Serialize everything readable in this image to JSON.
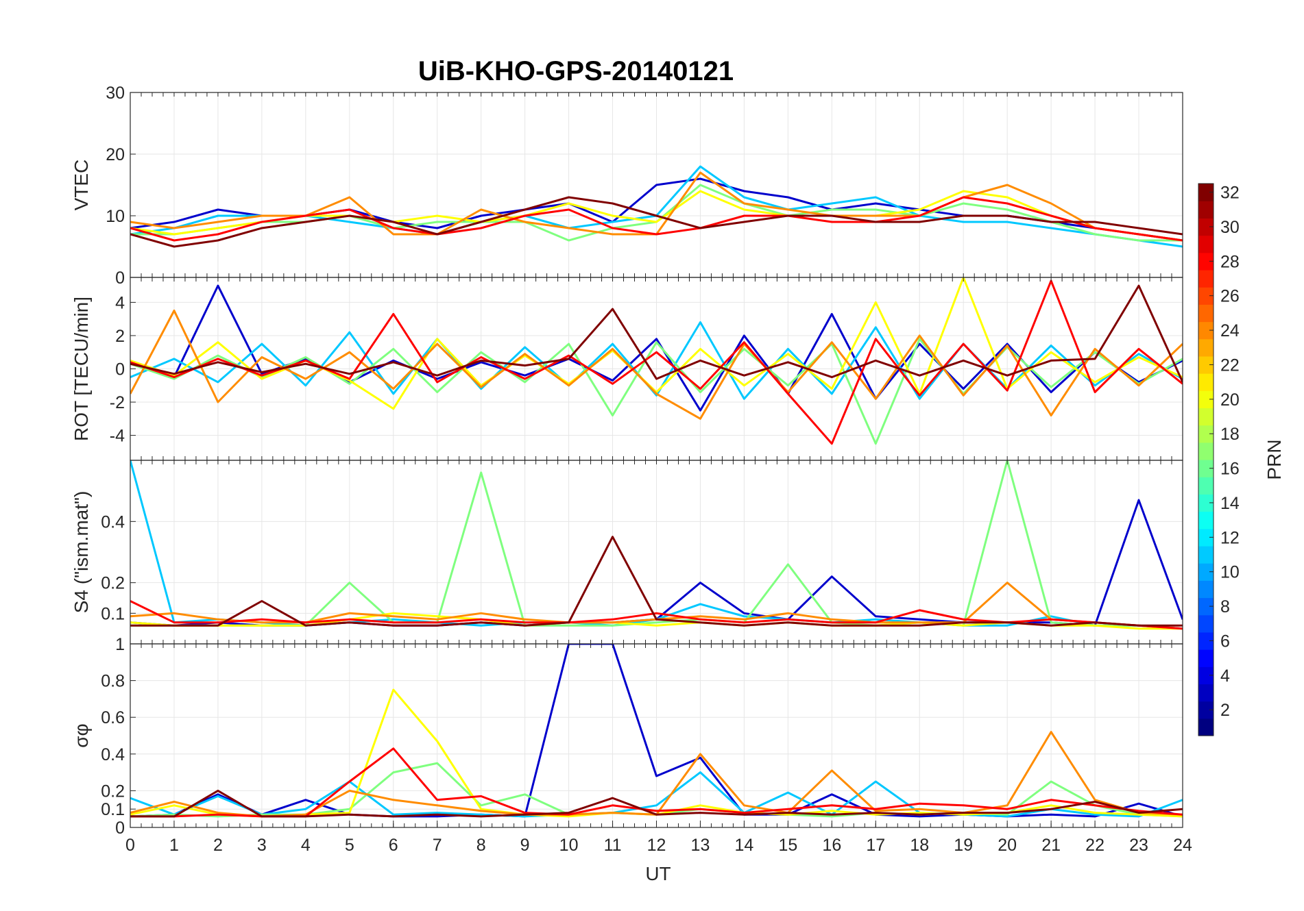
{
  "chart_data": {
    "type": "line",
    "title": "UiB-KHO-GPS-20140121",
    "xlabel": "UT",
    "xlim": [
      0,
      24
    ],
    "x_ticks": [
      "0",
      "1",
      "2",
      "3",
      "4",
      "5",
      "6",
      "7",
      "8",
      "9",
      "10",
      "11",
      "12",
      "13",
      "14",
      "15",
      "16",
      "17",
      "18",
      "19",
      "20",
      "21",
      "22",
      "23",
      "24"
    ],
    "grid": true,
    "colorbar": {
      "label": "PRN",
      "colormap": "jet",
      "range": [
        1,
        32
      ],
      "ticks": [
        "2",
        "4",
        "6",
        "8",
        "10",
        "12",
        "14",
        "16",
        "18",
        "20",
        "22",
        "24",
        "26",
        "28",
        "30",
        "32"
      ],
      "placement": "right"
    },
    "x": [
      0,
      1,
      2,
      3,
      4,
      5,
      6,
      7,
      8,
      9,
      10,
      11,
      12,
      13,
      14,
      15,
      16,
      17,
      18,
      19,
      20,
      21,
      22,
      23,
      24
    ],
    "panels": [
      {
        "ylabel": "VTEC",
        "ylim": [
          0,
          30
        ],
        "y_ticks": [
          "0",
          "10",
          "20",
          "30"
        ],
        "series": [
          {
            "color": "#0000cc",
            "values": [
              8,
              9,
              11,
              10,
              10,
              11,
              9,
              8,
              10,
              11,
              12,
              9,
              15,
              16,
              14,
              13,
              11,
              12,
              11,
              10,
              10,
              9,
              8,
              7,
              6
            ]
          },
          {
            "color": "#00c8ff",
            "values": [
              7,
              8,
              10,
              10,
              10,
              9,
              8,
              7,
              9,
              10,
              8,
              9,
              10,
              18,
              13,
              11,
              12,
              13,
              10,
              9,
              9,
              8,
              7,
              6,
              5
            ]
          },
          {
            "color": "#7fff7f",
            "values": [
              7,
              7,
              8,
              9,
              9,
              10,
              8,
              9,
              9,
              9,
              6,
              8,
              9,
              15,
              12,
              10,
              11,
              11,
              10,
              12,
              11,
              9,
              7,
              6,
              6
            ]
          },
          {
            "color": "#ffff00",
            "values": [
              8,
              7,
              8,
              9,
              10,
              10,
              9,
              10,
              9,
              10,
              12,
              10,
              9,
              14,
              11,
              10,
              10,
              10,
              11,
              14,
              13,
              10,
              8,
              7,
              6
            ]
          },
          {
            "color": "#ff8c00",
            "values": [
              9,
              8,
              9,
              10,
              10,
              13,
              7,
              7,
              11,
              9,
              8,
              7,
              7,
              17,
              12,
              11,
              10,
              10,
              10,
              13,
              15,
              12,
              8,
              7,
              6
            ]
          },
          {
            "color": "#ff0000",
            "values": [
              8,
              6,
              7,
              9,
              10,
              11,
              8,
              7,
              8,
              10,
              11,
              8,
              7,
              8,
              10,
              10,
              9,
              9,
              10,
              13,
              12,
              10,
              8,
              7,
              6
            ]
          },
          {
            "color": "#800000",
            "values": [
              7,
              5,
              6,
              8,
              9,
              10,
              9,
              7,
              9,
              11,
              13,
              12,
              10,
              8,
              9,
              10,
              10,
              9,
              9,
              10,
              10,
              9,
              9,
              8,
              7
            ]
          }
        ]
      },
      {
        "ylabel": "ROT [TECU/min]",
        "ylim": [
          -5.5,
          5.5
        ],
        "y_ticks": [
          "-4",
          "-2",
          "0",
          "2",
          "4"
        ],
        "series": [
          {
            "color": "#0000cc",
            "values": [
              0.4,
              -0.5,
              5,
              -0.3,
              0.6,
              -0.8,
              0.5,
              -0.6,
              0.4,
              -0.4,
              0.6,
              -0.7,
              1.8,
              -2.5,
              2,
              -1.5,
              3.3,
              -1.8,
              1.5,
              -1.2,
              1.5,
              -1.4,
              1,
              -0.8,
              0.5
            ]
          },
          {
            "color": "#00c8ff",
            "values": [
              -0.5,
              0.6,
              -0.8,
              1.5,
              -1,
              2.2,
              -1.5,
              1.8,
              -1.2,
              1.3,
              -1,
              1.5,
              -1.6,
              2.8,
              -1.8,
              1.2,
              -1.5,
              2.5,
              -1.8,
              1.5,
              -1.2,
              1.4,
              -1,
              0.9,
              -0.6
            ]
          },
          {
            "color": "#7fff7f",
            "values": [
              0.3,
              -0.6,
              0.8,
              -0.5,
              0.7,
              -0.9,
              1.2,
              -1.4,
              1,
              -0.8,
              1.5,
              -2.8,
              1.6,
              -1.4,
              1.2,
              -1,
              1.5,
              -4.5,
              1.8,
              -1.5,
              1.3,
              -1.1,
              1,
              -0.9,
              0.6
            ]
          },
          {
            "color": "#ffff00",
            "values": [
              0.5,
              -0.4,
              1.6,
              -0.6,
              0.5,
              -0.7,
              -2.4,
              1.8,
              -1,
              0.8,
              -0.9,
              1.1,
              -1.4,
              1.2,
              -1,
              0.9,
              -1.2,
              4,
              -1.5,
              5.5,
              -1.2,
              1,
              -0.8,
              0.7,
              -0.5
            ]
          },
          {
            "color": "#ff8c00",
            "values": [
              -1.5,
              3.5,
              -2,
              0.7,
              -0.6,
              1,
              -1.2,
              1.5,
              -1.1,
              0.9,
              -1,
              1.2,
              -1.5,
              -3,
              1.5,
              -1.4,
              1.6,
              -1.8,
              2,
              -1.6,
              1.4,
              -2.8,
              1.2,
              -1,
              1.5
            ]
          },
          {
            "color": "#ff0000",
            "values": [
              0.4,
              -0.5,
              0.6,
              -0.4,
              0.5,
              -0.6,
              3.3,
              -0.8,
              0.7,
              -0.6,
              0.8,
              -0.9,
              1,
              -1.2,
              1.6,
              -1.5,
              -4.5,
              1.8,
              -1.6,
              1.5,
              -1.3,
              5.3,
              -1.4,
              1.2,
              -0.9
            ]
          },
          {
            "color": "#800000",
            "values": [
              0.3,
              -0.3,
              0.4,
              -0.2,
              0.3,
              -0.3,
              0.4,
              -0.4,
              0.5,
              0.2,
              0.6,
              3.6,
              -0.6,
              0.5,
              -0.4,
              0.4,
              -0.5,
              0.5,
              -0.4,
              0.5,
              -0.4,
              0.5,
              0.6,
              5,
              -0.8
            ]
          }
        ]
      },
      {
        "ylabel": "S4 (\"ism.mat\")",
        "ylim": [
          0,
          0.6
        ],
        "y_ticks": [
          "0.1",
          "0.2",
          "0.4"
        ],
        "series": [
          {
            "color": "#0000cc",
            "values": [
              0.07,
              0.06,
              0.07,
              0.06,
              0.06,
              0.07,
              0.06,
              0.06,
              0.07,
              0.06,
              0.07,
              0.07,
              0.08,
              0.2,
              0.1,
              0.08,
              0.22,
              0.09,
              0.08,
              0.07,
              0.07,
              0.07,
              0.06,
              0.47,
              0.08
            ]
          },
          {
            "color": "#00c8ff",
            "values": [
              0.6,
              0.07,
              0.08,
              0.07,
              0.06,
              0.07,
              0.08,
              0.07,
              0.06,
              0.07,
              0.07,
              0.06,
              0.08,
              0.13,
              0.09,
              0.08,
              0.07,
              0.08,
              0.07,
              0.06,
              0.06,
              0.09,
              0.06,
              0.06,
              0.05
            ]
          },
          {
            "color": "#7fff7f",
            "values": [
              0.06,
              0.06,
              0.06,
              0.06,
              0.06,
              0.2,
              0.07,
              0.07,
              0.56,
              0.06,
              0.06,
              0.06,
              0.07,
              0.08,
              0.07,
              0.26,
              0.07,
              0.06,
              0.07,
              0.06,
              0.6,
              0.07,
              0.06,
              0.06,
              0.05
            ]
          },
          {
            "color": "#ffff00",
            "values": [
              0.07,
              0.06,
              0.06,
              0.06,
              0.06,
              0.08,
              0.1,
              0.09,
              0.08,
              0.06,
              0.07,
              0.07,
              0.06,
              0.07,
              0.06,
              0.07,
              0.06,
              0.06,
              0.07,
              0.06,
              0.07,
              0.06,
              0.06,
              0.05,
              0.05
            ]
          },
          {
            "color": "#ff8c00",
            "values": [
              0.09,
              0.1,
              0.08,
              0.07,
              0.07,
              0.1,
              0.09,
              0.08,
              0.1,
              0.08,
              0.07,
              0.07,
              0.08,
              0.09,
              0.08,
              0.1,
              0.08,
              0.07,
              0.07,
              0.07,
              0.2,
              0.08,
              0.07,
              0.06,
              0.05
            ]
          },
          {
            "color": "#ff0000",
            "values": [
              0.14,
              0.07,
              0.07,
              0.08,
              0.07,
              0.08,
              0.07,
              0.07,
              0.08,
              0.07,
              0.07,
              0.08,
              0.1,
              0.08,
              0.07,
              0.08,
              0.07,
              0.07,
              0.11,
              0.08,
              0.07,
              0.08,
              0.07,
              0.06,
              0.05
            ]
          },
          {
            "color": "#800000",
            "values": [
              0.06,
              0.06,
              0.06,
              0.14,
              0.06,
              0.07,
              0.06,
              0.06,
              0.07,
              0.06,
              0.07,
              0.35,
              0.08,
              0.07,
              0.06,
              0.07,
              0.06,
              0.06,
              0.06,
              0.07,
              0.07,
              0.06,
              0.07,
              0.06,
              0.06
            ]
          }
        ]
      },
      {
        "ylabel": "σφ",
        "ylim": [
          0,
          1
        ],
        "y_ticks": [
          "0",
          "0.1",
          "0.2",
          "0.4",
          "0.6",
          "0.8",
          "1"
        ],
        "series": [
          {
            "color": "#0000cc",
            "values": [
              0.06,
              0.07,
              0.18,
              0.07,
              0.15,
              0.07,
              0.06,
              0.06,
              0.07,
              0.06,
              1,
              1,
              0.28,
              0.38,
              0.07,
              0.07,
              0.18,
              0.07,
              0.06,
              0.07,
              0.06,
              0.07,
              0.06,
              0.13,
              0.06
            ]
          },
          {
            "color": "#00c8ff",
            "values": [
              0.16,
              0.07,
              0.17,
              0.07,
              0.1,
              0.25,
              0.07,
              0.08,
              0.07,
              0.06,
              0.07,
              0.08,
              0.12,
              0.3,
              0.08,
              0.19,
              0.07,
              0.25,
              0.08,
              0.07,
              0.06,
              0.1,
              0.07,
              0.06,
              0.15
            ]
          },
          {
            "color": "#7fff7f",
            "values": [
              0.06,
              0.07,
              0.06,
              0.07,
              0.07,
              0.1,
              0.3,
              0.35,
              0.12,
              0.18,
              0.07,
              0.08,
              0.07,
              0.1,
              0.08,
              0.07,
              0.06,
              0.08,
              0.07,
              0.08,
              0.07,
              0.25,
              0.12,
              0.07,
              0.06
            ]
          },
          {
            "color": "#ffff00",
            "values": [
              0.07,
              0.12,
              0.07,
              0.06,
              0.07,
              0.08,
              0.75,
              0.47,
              0.1,
              0.07,
              0.06,
              0.08,
              0.07,
              0.12,
              0.08,
              0.07,
              0.09,
              0.07,
              0.08,
              0.07,
              0.08,
              0.12,
              0.08,
              0.07,
              0.06
            ]
          },
          {
            "color": "#ff8c00",
            "values": [
              0.08,
              0.14,
              0.08,
              0.06,
              0.07,
              0.2,
              0.15,
              0.12,
              0.09,
              0.07,
              0.07,
              0.08,
              0.07,
              0.4,
              0.12,
              0.08,
              0.31,
              0.09,
              0.1,
              0.08,
              0.12,
              0.52,
              0.15,
              0.08,
              0.07
            ]
          },
          {
            "color": "#ff0000",
            "values": [
              0.06,
              0.06,
              0.07,
              0.06,
              0.06,
              0.25,
              0.43,
              0.15,
              0.17,
              0.08,
              0.07,
              0.12,
              0.09,
              0.1,
              0.08,
              0.1,
              0.12,
              0.1,
              0.13,
              0.12,
              0.1,
              0.15,
              0.12,
              0.09,
              0.07
            ]
          },
          {
            "color": "#800000",
            "values": [
              0.06,
              0.06,
              0.2,
              0.06,
              0.06,
              0.07,
              0.06,
              0.07,
              0.06,
              0.07,
              0.08,
              0.16,
              0.07,
              0.08,
              0.07,
              0.08,
              0.07,
              0.08,
              0.07,
              0.08,
              0.08,
              0.1,
              0.14,
              0.08,
              0.1
            ]
          }
        ]
      }
    ]
  }
}
